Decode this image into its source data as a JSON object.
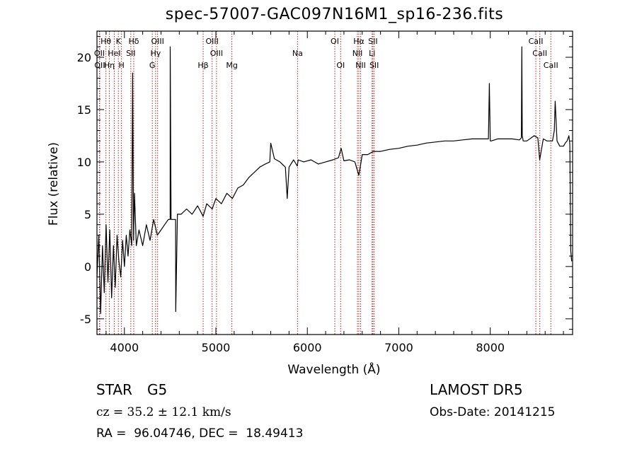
{
  "title": "spec-57007-GAC097N16M1_sp16-236.fits",
  "info": {
    "object_class": "STAR",
    "subclass": "G5",
    "survey": "LAMOST DR5",
    "redshift": "cz = 35.2 ± 12.1 km/s",
    "obs_date": "Obs-Date: 20141215",
    "coords": "RA =  96.04746, DEC =  18.49413"
  },
  "chart_data": {
    "type": "line",
    "title": "spec-57007-GAC097N16M1_sp16-236.fits",
    "xlabel": "Wavelength (Å)",
    "ylabel": "Flux (relative)",
    "xlim": [
      3700,
      8900
    ],
    "ylim": [
      -6.5,
      22.5
    ],
    "x_ticks": [
      4000,
      5000,
      6000,
      7000,
      8000
    ],
    "y_ticks": [
      -5,
      0,
      5,
      10,
      15,
      20
    ],
    "grid": false,
    "line_color": "#000000",
    "marker_color": "#b22222",
    "series": [
      {
        "x": [
          3700,
          3720,
          3740,
          3760,
          3780,
          3800,
          3820,
          3840,
          3860,
          3880,
          3900,
          3920,
          3940,
          3960,
          3980,
          4000,
          4020,
          4040,
          4060,
          4080,
          4090,
          4100,
          4110,
          4130,
          4160,
          4200,
          4240,
          4280,
          4320,
          4360,
          4400,
          4440,
          4480,
          4500,
          4501,
          4510,
          4540,
          4560,
          4561,
          4580,
          4620,
          4680,
          4740,
          4800,
          4861,
          4900,
          4960,
          5000,
          5060,
          5120,
          5180,
          5240,
          5300,
          5360,
          5420,
          5480,
          5540,
          5590,
          5600,
          5640,
          5700,
          5760,
          5780,
          5800,
          5850,
          5890,
          5900,
          5960,
          6040,
          6120,
          6200,
          6280,
          6340,
          6370,
          6400,
          6460,
          6520,
          6563,
          6600,
          6660,
          6720,
          6800,
          6900,
          7000,
          7100,
          7200,
          7300,
          7400,
          7500,
          7600,
          7700,
          7800,
          7900,
          7980,
          7990,
          8000,
          8010,
          8080,
          8160,
          8240,
          8320,
          8340,
          8345,
          8350,
          8360,
          8400,
          8480,
          8520,
          8540,
          8580,
          8620,
          8680,
          8700,
          8710,
          8730,
          8760,
          8800,
          8820,
          8840,
          8860,
          8870,
          8880,
          8890
        ],
        "values": [
          -1.0,
          3.0,
          -4.5,
          2.0,
          -2.5,
          4.0,
          -1.5,
          3.5,
          -3.0,
          2.0,
          -2.0,
          3.0,
          0.5,
          -1.0,
          2.5,
          0.0,
          3.0,
          1.0,
          3.5,
          2.0,
          18.5,
          2.5,
          7.0,
          2.0,
          3.5,
          2.0,
          4.0,
          2.5,
          4.5,
          3.0,
          3.5,
          4.0,
          4.5,
          4.5,
          21.0,
          4.5,
          4.5,
          4.5,
          -4.3,
          5.0,
          5.0,
          5.5,
          5.0,
          5.8,
          4.8,
          6.0,
          5.5,
          6.5,
          6.0,
          7.0,
          6.5,
          7.5,
          7.8,
          8.5,
          9.0,
          9.5,
          9.8,
          10.0,
          11.8,
          10.3,
          10.0,
          9.5,
          6.5,
          9.5,
          10.2,
          9.6,
          10.2,
          10.0,
          10.2,
          9.8,
          10.0,
          10.2,
          10.4,
          11.3,
          10.1,
          10.2,
          10.0,
          8.7,
          10.7,
          10.7,
          11.0,
          11.0,
          11.2,
          11.3,
          11.5,
          11.6,
          11.8,
          11.9,
          12.0,
          12.0,
          12.1,
          12.2,
          12.2,
          12.2,
          17.5,
          12.0,
          12.0,
          12.2,
          12.2,
          12.2,
          12.1,
          12.3,
          21.0,
          12.5,
          12.0,
          12.0,
          12.5,
          12.3,
          10.2,
          12.2,
          12.0,
          12.0,
          13.0,
          15.8,
          12.0,
          11.5,
          11.5,
          11.8,
          12.0,
          12.5,
          11.7,
          1.5,
          0.5
        ]
      }
    ],
    "line_markers": [
      {
        "label": "Hθ",
        "x": 3798,
        "row": 1
      },
      {
        "label": "K",
        "x": 3934,
        "row": 1
      },
      {
        "label": "Hδ",
        "x": 4102,
        "row": 1
      },
      {
        "label": "OIII",
        "x": 4363,
        "row": 1
      },
      {
        "label": "OIII",
        "x": 4959,
        "row": 1
      },
      {
        "label": "OI",
        "x": 6300,
        "row": 1
      },
      {
        "label": "Hα",
        "x": 6563,
        "row": 1
      },
      {
        "label": "SII",
        "x": 6717,
        "row": 1
      },
      {
        "label": "CaII",
        "x": 8498,
        "row": 1
      },
      {
        "label": "OII",
        "x": 3727,
        "row": 2
      },
      {
        "label": "HeI",
        "x": 3889,
        "row": 2
      },
      {
        "label": "SII",
        "x": 4070,
        "row": 2
      },
      {
        "label": "Hγ",
        "x": 4341,
        "row": 2
      },
      {
        "label": "OIII",
        "x": 5007,
        "row": 2
      },
      {
        "label": "Na",
        "x": 5893,
        "row": 2
      },
      {
        "label": "NII",
        "x": 6548,
        "row": 2
      },
      {
        "label": "Li",
        "x": 6708,
        "row": 2
      },
      {
        "label": "CaII",
        "x": 8542,
        "row": 2
      },
      {
        "label": "OII",
        "x": 3730,
        "row": 3
      },
      {
        "label": "Hη",
        "x": 3835,
        "row": 3
      },
      {
        "label": "H",
        "x": 3968,
        "row": 3
      },
      {
        "label": "G",
        "x": 4305,
        "row": 3
      },
      {
        "label": "Hβ",
        "x": 4861,
        "row": 3
      },
      {
        "label": "Mg",
        "x": 5175,
        "row": 3
      },
      {
        "label": "OI",
        "x": 6364,
        "row": 3
      },
      {
        "label": "NII",
        "x": 6583,
        "row": 3
      },
      {
        "label": "SII",
        "x": 6731,
        "row": 3
      },
      {
        "label": "CaII",
        "x": 8662,
        "row": 3
      }
    ]
  }
}
